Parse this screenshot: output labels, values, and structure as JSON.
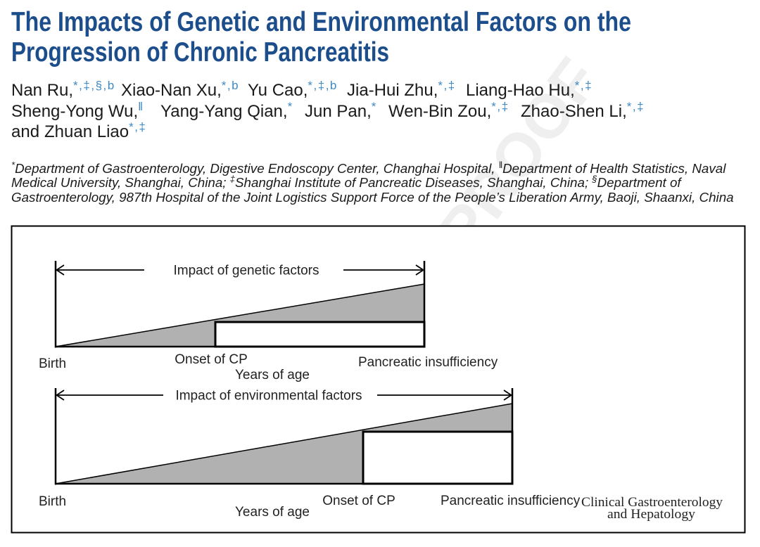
{
  "title": {
    "line1": "The Impacts of Genetic and Environmental Factors on the",
    "line2": "Progression of Chronic Pancreatitis"
  },
  "authors": {
    "line1": [
      {
        "name": "Nan Ru,",
        "sup": "*,‡,§,b"
      },
      {
        "name": "Xiao-Nan Xu,",
        "sup": "*,b"
      },
      {
        "name": "Yu Cao,",
        "sup": "*,‡,b"
      },
      {
        "name": "Jia-Hui Zhu,",
        "sup": "*,‡"
      },
      {
        "name": "Liang-Hao Hu,",
        "sup": "*,‡"
      }
    ],
    "line2": [
      {
        "name": "Sheng-Yong Wu,",
        "sup": "‖"
      },
      {
        "name": "Yang-Yang Qian,",
        "sup": "*"
      },
      {
        "name": "Jun Pan,",
        "sup": "*"
      },
      {
        "name": "Wen-Bin Zou,",
        "sup": "*,‡"
      },
      {
        "name": "Zhao-Shen Li,",
        "sup": "*,‡"
      }
    ],
    "line3": {
      "connector": "and",
      "name": "Zhuan Liao",
      "sup": "*,‡"
    }
  },
  "affiliations": {
    "line1": [
      {
        "sup": "*",
        "text": "Department of Gastroenterology, Digestive Endoscopy Center, Changhai Hospital, "
      },
      {
        "sup": "‖",
        "text": "Department of Health Statistics, Naval"
      }
    ],
    "line2": [
      {
        "text": "Medical University, Shanghai, China; "
      },
      {
        "sup": "‡",
        "text": "Shanghai Institute of Pancreatic Diseases, Shanghai, China; "
      },
      {
        "sup": "§",
        "text": "Department of"
      }
    ],
    "line3": [
      {
        "text": "Gastroenterology, 987th Hospital of the Joint Logistics Support Force of the People’s Liberation Army, Baoji, Shaanxi, China"
      }
    ]
  },
  "watermark": "PROOF",
  "figure": {
    "genetic": {
      "arrow_label": "Impact of genetic factors",
      "birth": "Birth",
      "onset": "Onset of CP",
      "insufficiency": "Pancreatic insufficiency",
      "xlabel": "Years of age"
    },
    "environmental": {
      "arrow_label": "Impact of environmental factors",
      "birth": "Birth",
      "onset": "Onset of CP",
      "insufficiency": "Pancreatic insufficiency",
      "xlabel": "Years of age"
    },
    "journal": {
      "line1": "Clinical Gastroenterology",
      "line2": "and Hepatology"
    }
  },
  "colors": {
    "title": "#1d4e8c",
    "superscript": "#3d89c5",
    "text": "#1a1a1a",
    "shade": "#b1b1b1",
    "watermark": "#efefef"
  }
}
